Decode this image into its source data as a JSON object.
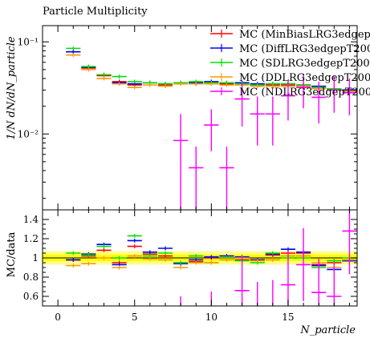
{
  "chart_data": {
    "type": "scatter",
    "title": "Particle Multiplicity",
    "xlabel": "N_particle",
    "ylabel_top": "1/N dN/dN_particle",
    "ylabel_bottom": "MC/data",
    "x_range": [
      -1,
      19.5
    ],
    "y_range_top": [
      0.0015,
      0.15
    ],
    "y_scale_top": "log",
    "y_range_bottom": [
      0.5,
      1.5
    ],
    "x_ticks": [
      0,
      5,
      10,
      15
    ],
    "y_ticks_top": [
      {
        "value": 0.1,
        "label": "10⁻¹"
      },
      {
        "value": 0.01,
        "label": "10⁻²"
      }
    ],
    "y_ticks_bottom": [
      {
        "value": 0.6,
        "label": "0.6"
      },
      {
        "value": 0.8,
        "label": "0.8"
      },
      {
        "value": 1.0,
        "label": "1"
      },
      {
        "value": 1.2,
        "label": "1.2"
      },
      {
        "value": 1.4,
        "label": "1.4"
      }
    ],
    "legend_position": "top-right",
    "data_band": {
      "inner": 0.035,
      "outer": 0.07,
      "color": "#ffff00"
    },
    "series": [
      {
        "name": "MC (MinBiasLRG3edgepT",
        "color": "#ff0000",
        "x": [
          1,
          2,
          3,
          4,
          5,
          6,
          7,
          8,
          9,
          10,
          11,
          12,
          13,
          14,
          15,
          16,
          17,
          18,
          19
        ],
        "y": [
          0.078,
          0.052,
          0.043,
          0.037,
          0.034,
          0.036,
          0.034,
          0.036,
          0.035,
          0.036,
          0.035,
          0.035,
          0.034,
          0.034,
          0.034,
          0.034,
          0.032,
          0.031,
          0.03
        ],
        "ratio": [
          0.98,
          1.02,
          1.08,
          0.95,
          1.12,
          1.04,
          1.02,
          0.95,
          0.96,
          1.0,
          1.0,
          0.98,
          0.98,
          1.03,
          1.05,
          1.05,
          0.93,
          0.95,
          0.97
        ]
      },
      {
        "name": "MC (DiffLRG3edgepT200",
        "color": "#0000ff",
        "x": [
          1,
          2,
          3,
          4,
          5,
          6,
          7,
          8,
          9,
          10,
          11,
          12,
          13,
          14,
          15,
          16,
          17,
          18,
          19
        ],
        "y": [
          0.078,
          0.053,
          0.044,
          0.036,
          0.035,
          0.036,
          0.035,
          0.036,
          0.036,
          0.037,
          0.036,
          0.036,
          0.035,
          0.035,
          0.035,
          0.034,
          0.033,
          0.031,
          0.03
        ],
        "ratio": [
          0.98,
          1.04,
          1.14,
          0.93,
          1.18,
          1.06,
          1.1,
          0.94,
          0.98,
          1.01,
          1.02,
          1.01,
          0.98,
          1.04,
          1.09,
          1.06,
          0.92,
          0.88,
          0.97
        ]
      },
      {
        "name": "MC (SDLRG3edgepT200",
        "color": "#00e000",
        "x": [
          1,
          2,
          3,
          4,
          5,
          6,
          7,
          8,
          9,
          10,
          11,
          12,
          13,
          14,
          15,
          16,
          17,
          18,
          19
        ],
        "y": [
          0.085,
          0.054,
          0.044,
          0.042,
          0.037,
          0.036,
          0.035,
          0.036,
          0.037,
          0.036,
          0.036,
          0.035,
          0.034,
          0.035,
          0.035,
          0.034,
          0.032,
          0.031,
          0.029
        ],
        "ratio": [
          1.05,
          1.03,
          1.12,
          1.0,
          1.23,
          1.02,
          1.05,
          0.95,
          1.02,
          0.95,
          1.0,
          0.97,
          0.95,
          1.05,
          1.0,
          1.0,
          0.9,
          0.97,
          1.0
        ]
      },
      {
        "name": "MC (DDLRG3edgepT200",
        "color": "#ff9900",
        "x": [
          1,
          2,
          3,
          4,
          5,
          6,
          7,
          8,
          9,
          10,
          11,
          12,
          13,
          14,
          15,
          16,
          17,
          18,
          19
        ],
        "y": [
          0.072,
          0.05,
          0.04,
          0.035,
          0.032,
          0.034,
          0.033,
          0.035,
          0.035,
          0.035,
          0.034,
          0.034,
          0.033,
          0.033,
          0.033,
          0.033,
          0.031,
          0.03,
          0.029
        ],
        "ratio": [
          0.92,
          0.94,
          1.0,
          0.9,
          1.02,
          0.99,
          0.98,
          0.9,
          0.95,
          0.95,
          0.98,
          1.0,
          0.97,
          0.98,
          1.02,
          1.02,
          0.95,
          0.9,
          0.98
        ]
      },
      {
        "name": "MC (NDLRG3edgepT200",
        "color": "#ff00ff",
        "x": [
          8,
          9,
          10,
          11,
          12,
          13,
          14,
          15,
          16,
          17,
          18,
          19
        ],
        "y": [
          0.0085,
          0.0043,
          0.0125,
          0.0043,
          0.024,
          0.0165,
          0.0165,
          0.026,
          0.032,
          0.025,
          0.03,
          0.028
        ],
        "yerr": [
          0.008,
          0.003,
          0.006,
          0.003,
          0.012,
          0.009,
          0.009,
          0.012,
          0.013,
          0.012,
          0.013,
          0.012
        ],
        "ratio": [
          0.3,
          0.12,
          0.35,
          0.12,
          0.66,
          0.45,
          0.47,
          0.72,
          0.93,
          0.64,
          0.6,
          1.28
        ],
        "ratio_err": [
          0.3,
          0.12,
          0.3,
          0.12,
          0.35,
          0.3,
          0.3,
          0.35,
          0.38,
          0.35,
          0.35,
          0.45
        ]
      }
    ]
  }
}
